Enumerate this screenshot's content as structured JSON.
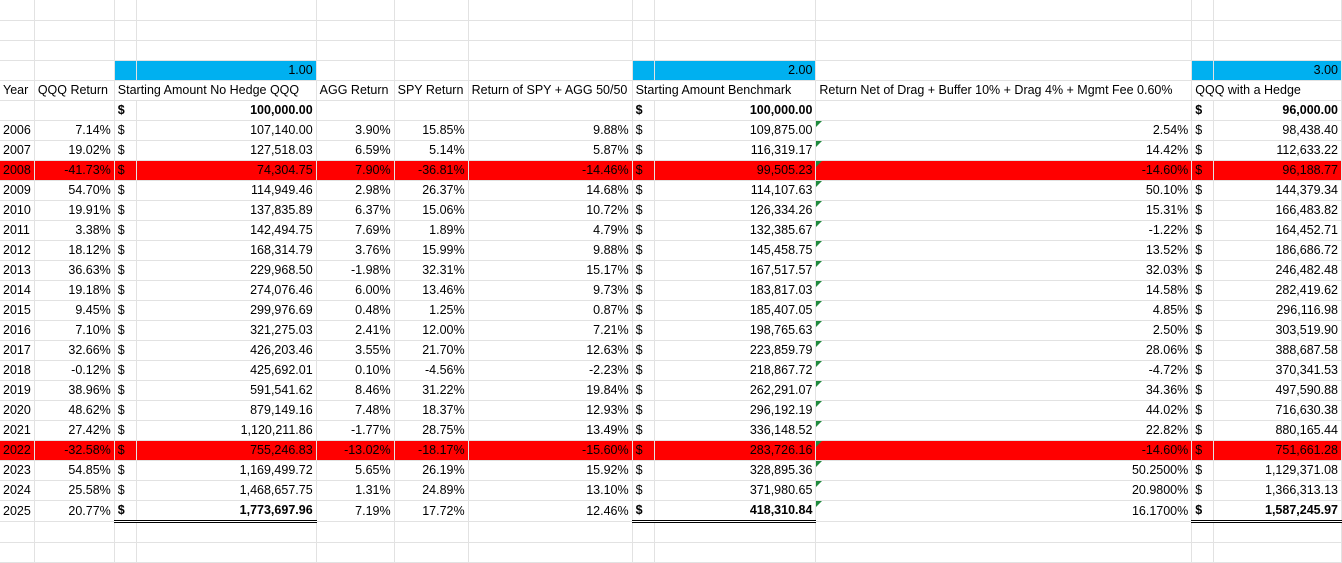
{
  "section_labels": {
    "s1": "1.00",
    "s2": "2.00",
    "s3": "3.00"
  },
  "headers": {
    "year": "Year",
    "qqq_return": "QQQ Return",
    "start_no_hedge": "Starting Amount No Hedge QQQ",
    "agg_return": "AGG Return",
    "spy_return": "SPY Return",
    "ret_5050": "Return of SPY + AGG 50/50",
    "start_benchmark": "Starting Amount Benchmark",
    "net_return": "Return Net of Drag + Buffer 10% + Drag 4% + Mgmt Fee 0.60%",
    "qqq_hedge": "QQQ with a Hedge"
  },
  "currency_symbol": "$",
  "initial": {
    "no_hedge": "100,000.00",
    "benchmark": "100,000.00",
    "hedge": "96,000.00"
  },
  "colors": {
    "section_fill": "#00b0f0",
    "highlight_row": "#ff0000",
    "error_triangle": "#1e8a3c"
  },
  "rows": [
    {
      "year": "2006",
      "qqq": "7.14%",
      "nh": "107,140.00",
      "agg": "3.90%",
      "spy": "15.85%",
      "r50": "9.88%",
      "bm": "109,875.00",
      "net": "2.54%",
      "hd": "98,438.40"
    },
    {
      "year": "2007",
      "qqq": "19.02%",
      "nh": "127,518.03",
      "agg": "6.59%",
      "spy": "5.14%",
      "r50": "5.87%",
      "bm": "116,319.17",
      "net": "14.42%",
      "hd": "112,633.22"
    },
    {
      "year": "2008",
      "qqq": "-41.73%",
      "nh": "74,304.75",
      "agg": "7.90%",
      "spy": "-36.81%",
      "r50": "-14.46%",
      "bm": "99,505.23",
      "net": "-14.60%",
      "hd": "96,188.77",
      "highlight": true
    },
    {
      "year": "2009",
      "qqq": "54.70%",
      "nh": "114,949.46",
      "agg": "2.98%",
      "spy": "26.37%",
      "r50": "14.68%",
      "bm": "114,107.63",
      "net": "50.10%",
      "hd": "144,379.34"
    },
    {
      "year": "2010",
      "qqq": "19.91%",
      "nh": "137,835.89",
      "agg": "6.37%",
      "spy": "15.06%",
      "r50": "10.72%",
      "bm": "126,334.26",
      "net": "15.31%",
      "hd": "166,483.82"
    },
    {
      "year": "2011",
      "qqq": "3.38%",
      "nh": "142,494.75",
      "agg": "7.69%",
      "spy": "1.89%",
      "r50": "4.79%",
      "bm": "132,385.67",
      "net": "-1.22%",
      "hd": "164,452.71"
    },
    {
      "year": "2012",
      "qqq": "18.12%",
      "nh": "168,314.79",
      "agg": "3.76%",
      "spy": "15.99%",
      "r50": "9.88%",
      "bm": "145,458.75",
      "net": "13.52%",
      "hd": "186,686.72"
    },
    {
      "year": "2013",
      "qqq": "36.63%",
      "nh": "229,968.50",
      "agg": "-1.98%",
      "spy": "32.31%",
      "r50": "15.17%",
      "bm": "167,517.57",
      "net": "32.03%",
      "hd": "246,482.48"
    },
    {
      "year": "2014",
      "qqq": "19.18%",
      "nh": "274,076.46",
      "agg": "6.00%",
      "spy": "13.46%",
      "r50": "9.73%",
      "bm": "183,817.03",
      "net": "14.58%",
      "hd": "282,419.62"
    },
    {
      "year": "2015",
      "qqq": "9.45%",
      "nh": "299,976.69",
      "agg": "0.48%",
      "spy": "1.25%",
      "r50": "0.87%",
      "bm": "185,407.05",
      "net": "4.85%",
      "hd": "296,116.98"
    },
    {
      "year": "2016",
      "qqq": "7.10%",
      "nh": "321,275.03",
      "agg": "2.41%",
      "spy": "12.00%",
      "r50": "7.21%",
      "bm": "198,765.63",
      "net": "2.50%",
      "hd": "303,519.90"
    },
    {
      "year": "2017",
      "qqq": "32.66%",
      "nh": "426,203.46",
      "agg": "3.55%",
      "spy": "21.70%",
      "r50": "12.63%",
      "bm": "223,859.79",
      "net": "28.06%",
      "hd": "388,687.58"
    },
    {
      "year": "2018",
      "qqq": "-0.12%",
      "nh": "425,692.01",
      "agg": "0.10%",
      "spy": "-4.56%",
      "r50": "-2.23%",
      "bm": "218,867.72",
      "net": "-4.72%",
      "hd": "370,341.53"
    },
    {
      "year": "2019",
      "qqq": "38.96%",
      "nh": "591,541.62",
      "agg": "8.46%",
      "spy": "31.22%",
      "r50": "19.84%",
      "bm": "262,291.07",
      "net": "34.36%",
      "hd": "497,590.88"
    },
    {
      "year": "2020",
      "qqq": "48.62%",
      "nh": "879,149.16",
      "agg": "7.48%",
      "spy": "18.37%",
      "r50": "12.93%",
      "bm": "296,192.19",
      "net": "44.02%",
      "hd": "716,630.38"
    },
    {
      "year": "2021",
      "qqq": "27.42%",
      "nh": "1,120,211.86",
      "agg": "-1.77%",
      "spy": "28.75%",
      "r50": "13.49%",
      "bm": "336,148.52",
      "net": "22.82%",
      "hd": "880,165.44"
    },
    {
      "year": "2022",
      "qqq": "-32.58%",
      "nh": "755,246.83",
      "agg": "-13.02%",
      "spy": "-18.17%",
      "r50": "-15.60%",
      "bm": "283,726.16",
      "net": "-14.60%",
      "hd": "751,661.28",
      "highlight": true
    },
    {
      "year": "2023",
      "qqq": "54.85%",
      "nh": "1,169,499.72",
      "agg": "5.65%",
      "spy": "26.19%",
      "r50": "15.92%",
      "bm": "328,895.36",
      "net": "50.2500%",
      "hd": "1,129,371.08"
    },
    {
      "year": "2024",
      "qqq": "25.58%",
      "nh": "1,468,657.75",
      "agg": "1.31%",
      "spy": "24.89%",
      "r50": "13.10%",
      "bm": "371,980.65",
      "net": "20.9800%",
      "hd": "1,366,313.13"
    },
    {
      "year": "2025",
      "qqq": "20.77%",
      "nh": "1,773,697.96",
      "agg": "7.19%",
      "spy": "17.72%",
      "r50": "12.46%",
      "bm": "418,310.84",
      "net": "16.1700%",
      "hd": "1,587,245.97",
      "total": true
    }
  ]
}
